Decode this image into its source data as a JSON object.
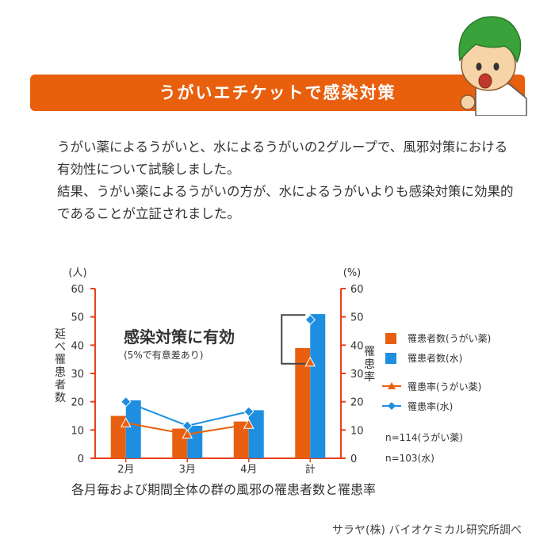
{
  "banner": {
    "title": "うがいエチケットで感染対策"
  },
  "intro": {
    "p1": "うがい薬によるうがいと、水によるうがいの2グループで、風邪対策における有効性について試験しました。",
    "p2": "結果、うがい薬によるうがいの方が、水によるうがいよりも感染対策に効果的であることが立証されました。"
  },
  "colors": {
    "orange": "#e8600f",
    "blue": "#1e8fe0",
    "axis_red": "#e8401a"
  },
  "chart_data": {
    "type": "bar",
    "categories": [
      "2月",
      "3月",
      "4月",
      "計"
    ],
    "series": [
      {
        "name": "罹患者数(うがい薬)",
        "kind": "bar",
        "axis": "left",
        "color": "#e8600f",
        "values": [
          15,
          10.5,
          13,
          39
        ]
      },
      {
        "name": "罹患者数(水)",
        "kind": "bar",
        "axis": "left",
        "color": "#1e8fe0",
        "values": [
          20.5,
          11.5,
          17,
          51
        ]
      },
      {
        "name": "罹患率(うがい薬)",
        "kind": "line",
        "marker": "triangle",
        "axis": "right",
        "color": "#e8600f",
        "values": [
          12.5,
          8.5,
          12,
          34
        ]
      },
      {
        "name": "罹患率(水)",
        "kind": "line",
        "marker": "diamond",
        "axis": "right",
        "color": "#1e8fe0",
        "values": [
          20,
          11.5,
          16.5,
          49
        ]
      }
    ],
    "left_axis": {
      "unit": "(人)",
      "label": "延べ罹患者数",
      "ylim": [
        0,
        60
      ],
      "ticks": [
        0,
        10,
        20,
        30,
        40,
        50,
        60
      ]
    },
    "right_axis": {
      "unit": "(%)",
      "label": "罹患率",
      "ylim": [
        0,
        60
      ],
      "ticks": [
        0,
        10,
        20,
        30,
        40,
        50,
        60
      ]
    },
    "annotation": {
      "main": "感染対策に有効",
      "sub": "(5%で有意差あり)"
    },
    "notes": [
      "n=114(うがい薬)",
      "n=103(水)"
    ],
    "caption": "各月毎および期間全体の群の風邪の罹患者数と罹患率"
  },
  "source": "サラヤ(株) バイオケミカル研究所調べ"
}
